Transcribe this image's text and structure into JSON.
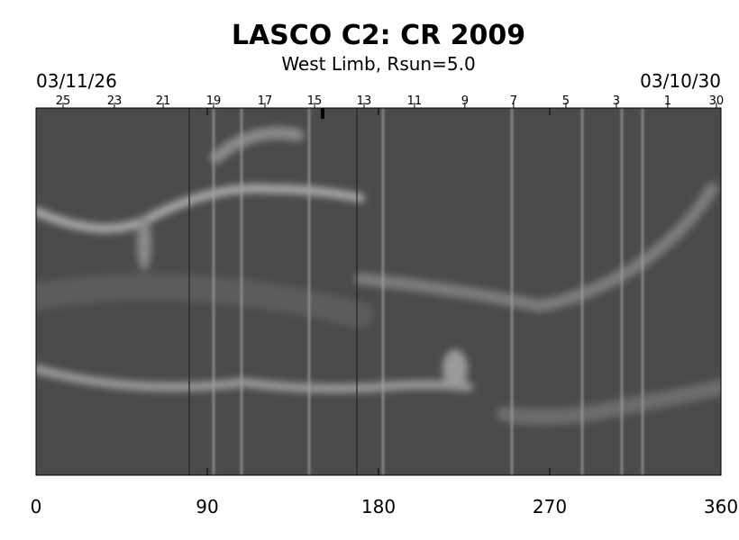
{
  "chart_data": {
    "type": "synoptic-map",
    "title": "LASCO C2: CR 2009",
    "subtitle": "West Limb, Rsun=5.0",
    "start_date": "03/11/26",
    "end_date": "03/10/30",
    "xlim": [
      0,
      360
    ],
    "xticks": [
      0,
      90,
      180,
      270,
      360
    ],
    "x2ticks": [
      {
        "value": 14.2,
        "label": "25"
      },
      {
        "value": 41.2,
        "label": "23"
      },
      {
        "value": 66.8,
        "label": "21"
      },
      {
        "value": 93.3,
        "label": "19"
      },
      {
        "value": 120.3,
        "label": "17"
      },
      {
        "value": 146.4,
        "label": "15"
      },
      {
        "value": 172.4,
        "label": "13"
      },
      {
        "value": 198.9,
        "label": "11"
      },
      {
        "value": 225.4,
        "label": "9"
      },
      {
        "value": 251,
        "label": "7"
      },
      {
        "value": 278.5,
        "label": "5"
      },
      {
        "value": 305,
        "label": "3"
      },
      {
        "value": 332,
        "label": "1"
      },
      {
        "value": 357.6,
        "label": "30"
      }
    ]
  }
}
